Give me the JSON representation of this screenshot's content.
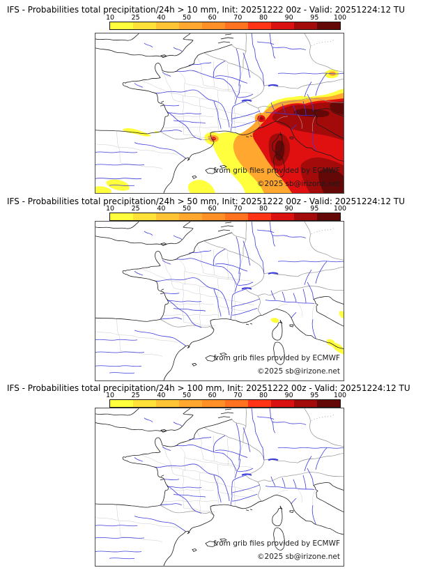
{
  "model": "IFS",
  "init": "20251222 00z",
  "valid": "20251224:12 TU",
  "panels": [
    {
      "threshold": "> 10 mm",
      "title": "IFS - Probabilities total precipitation/24h > 10 mm, Init: 20251222 00z - Valid: 20251224:12 TU",
      "shading_summary": "Widespread high probabilities (up to 100%) over SE France, Gulf of Lion, Corsica, Liguria, Po valley and central Italy; small maxima over the Alps, Aude coast, Atlantic coast and northern Spain."
    },
    {
      "threshold": "> 50 mm",
      "title": "IFS - Probabilities total precipitation/24h > 50 mm, Init: 20251222 00z - Valid: 20251224:12 TU",
      "shading_summary": "Only a few small low-probability (10-25%) patches along the Ligurian and central Italian coast."
    },
    {
      "threshold": "> 100 mm",
      "title": "IFS - Probabilities total precipitation/24h > 100 mm, Init: 20251222 00z - Valid: 20251224:12 TU",
      "shading_summary": "No probabilities above threshold anywhere on the map."
    }
  ],
  "colorbar": {
    "ticks": [
      "10",
      "25",
      "40",
      "50",
      "60",
      "70",
      "80",
      "90",
      "95",
      "100"
    ],
    "colors": [
      "#ffff3d",
      "#ffe13a",
      "#ffc435",
      "#ffa72e",
      "#ff8f27",
      "#ff7320",
      "#ff3417",
      "#d91111",
      "#a30b0b",
      "#640707"
    ]
  },
  "watermark": {
    "credit": "from grib files provided by ECMWF",
    "copyright": "©2025 sb@irizone.net"
  },
  "map_style": {
    "coast_color": "#1a1a1a",
    "border_color": "#909090",
    "department_color": "#c9c9c9",
    "river_color": "#3b3bdd"
  }
}
